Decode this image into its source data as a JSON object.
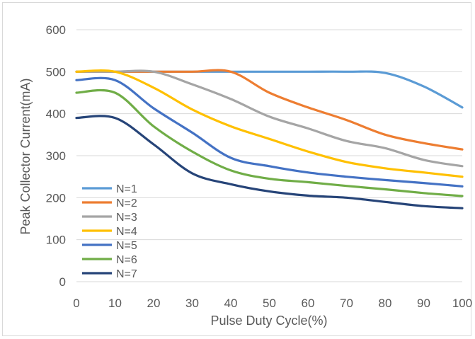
{
  "chart_data": {
    "type": "line",
    "title": "",
    "xlabel": "Pulse Duty Cycle(%)",
    "ylabel": "Peak Collector Current(mA)",
    "xlim": [
      0,
      100
    ],
    "ylim": [
      0,
      600
    ],
    "xticks": [
      0,
      10,
      20,
      30,
      40,
      50,
      60,
      70,
      80,
      90,
      100
    ],
    "yticks": [
      0,
      100,
      200,
      300,
      400,
      500,
      600
    ],
    "grid": "horizontal",
    "legend_position": "left",
    "x": [
      0,
      10,
      20,
      30,
      40,
      50,
      60,
      70,
      80,
      90,
      100
    ],
    "series": [
      {
        "name": "N=1",
        "color": "#5B9BD5",
        "values": [
          500,
          500,
          500,
          500,
          500,
          500,
          500,
          500,
          497,
          465,
          415
        ]
      },
      {
        "name": "N=2",
        "color": "#ED7D31",
        "values": [
          500,
          500,
          500,
          500,
          500,
          450,
          415,
          385,
          350,
          330,
          315
        ]
      },
      {
        "name": "N=3",
        "color": "#A5A5A5",
        "values": [
          500,
          500,
          500,
          470,
          435,
          393,
          365,
          335,
          318,
          290,
          275
        ]
      },
      {
        "name": "N=4",
        "color": "#FFC000",
        "values": [
          500,
          500,
          462,
          410,
          370,
          340,
          310,
          285,
          270,
          260,
          250
        ]
      },
      {
        "name": "N=5",
        "color": "#4472C4",
        "values": [
          480,
          480,
          413,
          355,
          295,
          275,
          260,
          250,
          242,
          235,
          227
        ]
      },
      {
        "name": "N=6",
        "color": "#70AD47",
        "values": [
          450,
          450,
          370,
          310,
          265,
          245,
          237,
          228,
          220,
          211,
          204
        ]
      },
      {
        "name": "N=7",
        "color": "#264478",
        "values": [
          390,
          390,
          327,
          258,
          232,
          215,
          205,
          200,
          190,
          180,
          175
        ]
      }
    ]
  }
}
